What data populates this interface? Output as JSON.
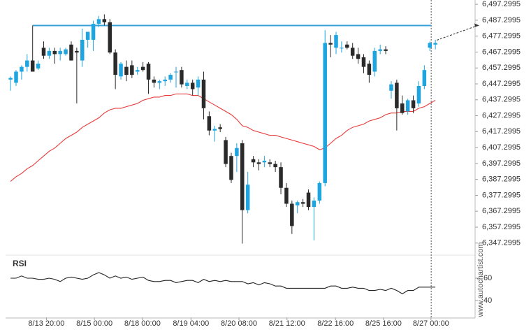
{
  "chart_data": {
    "type": "candlestick",
    "ylim": [
      6345,
      6500
    ],
    "yticks": [
      {
        "value": 6497.2995,
        "label": "6,497.2995"
      },
      {
        "value": 6487.2995,
        "label": "6,487.2995"
      },
      {
        "value": 6477.2995,
        "label": "6,477.2995"
      },
      {
        "value": 6467.2995,
        "label": "6,467.2995"
      },
      {
        "value": 6457.2995,
        "label": "6,457.2995"
      },
      {
        "value": 6447.2995,
        "label": "6,447.2995"
      },
      {
        "value": 6437.2995,
        "label": "6,437.2995"
      },
      {
        "value": 6427.2995,
        "label": "6,427.2995"
      },
      {
        "value": 6417.2995,
        "label": "6,417.2995"
      },
      {
        "value": 6407.2995,
        "label": "6,407.2995"
      },
      {
        "value": 6397.2995,
        "label": "6,397.2995"
      },
      {
        "value": 6387.2995,
        "label": "6,387.2995"
      },
      {
        "value": 6377.2995,
        "label": "6,377.2995"
      },
      {
        "value": 6367.2995,
        "label": "6,367.2995"
      },
      {
        "value": 6357.2995,
        "label": "6,357.2995"
      },
      {
        "value": 6347.2995,
        "label": "6,347.2995"
      }
    ],
    "xlim": [
      -0.9,
      84.2
    ],
    "xticks": [
      {
        "value": 6.5,
        "label": "8/13 20:00"
      },
      {
        "value": 15.2,
        "label": "8/15 00:00"
      },
      {
        "value": 23.9,
        "label": "8/18 00:00"
      },
      {
        "value": 32.7,
        "label": "8/19 04:00"
      },
      {
        "value": 41.4,
        "label": "8/20 08:00"
      },
      {
        "value": 50.1,
        "label": "8/21 12:00"
      },
      {
        "value": 58.9,
        "label": "8/22 16:00"
      },
      {
        "value": 67.6,
        "label": "8/25 16:00"
      },
      {
        "value": 76.2,
        "label": "8/27 00:00"
      }
    ],
    "up_color": "#1ea5e0",
    "down_color": "#2a2a2a",
    "candles": {
      "open": [
        6450,
        6448,
        6455,
        6458,
        6462,
        6457,
        6470,
        6465,
        6468,
        6466,
        6466,
        6472,
        6468,
        6462,
        6475,
        6475,
        6485,
        6488,
        6486,
        6467,
        6452,
        6458,
        6459,
        6455,
        6458,
        6460,
        6450,
        6448,
        6449,
        6450,
        6455,
        6456,
        6446,
        6448,
        6445,
        6450,
        6427,
        6418,
        6420,
        6412,
        6402,
        6402,
        6410,
        6368,
        6400,
        6398,
        6398,
        6398,
        6397,
        6395,
        6382,
        6372,
        6371,
        6373,
        6379,
        6370,
        6374,
        6385,
        6473,
        6470,
        6470,
        6472,
        6470,
        6466,
        6464,
        6460,
        6455,
        6468,
        6469,
        6443,
        6448,
        6435,
        6430,
        6437,
        6435,
        6446,
        6470,
        6472
      ],
      "high": [
        6452,
        6456,
        6459,
        6466,
        6484,
        6462,
        6474,
        6470,
        6470,
        6470,
        6470,
        6474,
        6470,
        6482,
        6480,
        6487,
        6490,
        6491,
        6488,
        6469,
        6461,
        6462,
        6462,
        6458,
        6461,
        6461,
        6452,
        6450,
        6452,
        6454,
        6458,
        6458,
        6450,
        6450,
        6452,
        6455,
        6430,
        6421,
        6422,
        6414,
        6404,
        6410,
        6412,
        6392,
        6402,
        6400,
        6402,
        6400,
        6399,
        6398,
        6385,
        6374,
        6374,
        6375,
        6381,
        6376,
        6386,
        6481,
        6478,
        6480,
        6474,
        6474,
        6473,
        6470,
        6466,
        6462,
        6470,
        6472,
        6471,
        6449,
        6450,
        6440,
        6438,
        6440,
        6449,
        6459,
        6474,
        6475
      ],
      "low": [
        6443,
        6446,
        6450,
        6455,
        6455,
        6456,
        6463,
        6463,
        6460,
        6462,
        6465,
        6462,
        6435,
        6458,
        6470,
        6468,
        6483,
        6484,
        6466,
        6444,
        6450,
        6449,
        6451,
        6453,
        6455,
        6441,
        6445,
        6444,
        6446,
        6448,
        6445,
        6445,
        6444,
        6440,
        6440,
        6425,
        6415,
        6411,
        6417,
        6395,
        6385,
        6392,
        6347,
        6366,
        6395,
        6393,
        6395,
        6395,
        6392,
        6378,
        6370,
        6353,
        6366,
        6370,
        6368,
        6349,
        6372,
        6383,
        6464,
        6466,
        6467,
        6469,
        6463,
        6460,
        6454,
        6448,
        6452,
        6466,
        6466,
        6438,
        6418,
        6428,
        6428,
        6429,
        6433,
        6444,
        6468,
        6469
      ],
      "close": [
        6451,
        6455,
        6458,
        6462,
        6455,
        6460,
        6465,
        6468,
        6466,
        6468,
        6469,
        6462,
        6467,
        6475,
        6480,
        6485,
        6488,
        6486,
        6467,
        6453,
        6460,
        6453,
        6453,
        6456,
        6456,
        6450,
        6448,
        6449,
        6450,
        6453,
        6455,
        6447,
        6448,
        6444,
        6450,
        6432,
        6418,
        6419,
        6419,
        6397,
        6387,
        6407,
        6368,
        6384,
        6398,
        6397,
        6399,
        6397,
        6395,
        6382,
        6372,
        6358,
        6373,
        6372,
        6370,
        6374,
        6385,
        6473,
        6472,
        6478,
        6470,
        6470,
        6465,
        6463,
        6458,
        6453,
        6468,
        6469,
        6468,
        6447,
        6432,
        6429,
        6437,
        6432,
        6446,
        6456,
        6473,
        6473
      ]
    },
    "series": [
      {
        "name": "MA",
        "color": "#e83a3a",
        "values": [
          6386,
          6389,
          6391,
          6394,
          6396,
          6399,
          6402,
          6405,
          6407,
          6410,
          6413,
          6415,
          6417,
          6420,
          6422,
          6424,
          6426,
          6429,
          6431,
          6432,
          6432,
          6433,
          6434,
          6435,
          6437,
          6438,
          6439,
          6439,
          6440,
          6440,
          6441,
          6441,
          6441,
          6440,
          6440,
          6438,
          6436,
          6434,
          6432,
          6430,
          6428,
          6425,
          6421,
          6420,
          6418,
          6417,
          6416,
          6415,
          6415,
          6414,
          6413,
          6412,
          6411,
          6410,
          6409,
          6408,
          6406,
          6407,
          6410,
          6413,
          6415,
          6418,
          6420,
          6421,
          6422,
          6424,
          6425,
          6426,
          6428,
          6429,
          6429,
          6430,
          6430,
          6430,
          6432,
          6433,
          6435,
          6437
        ]
      }
    ],
    "level": 6484,
    "level_color": "#3aa0d8",
    "rsi": {
      "title": "RSI",
      "ylim": [
        25,
        80
      ],
      "yticks": [
        60,
        40
      ],
      "color": "#222222",
      "values": [
        60,
        60,
        62,
        60,
        60,
        59,
        59,
        60,
        59,
        57,
        60,
        61,
        60,
        59,
        60,
        63,
        65,
        63,
        60,
        62,
        60,
        61,
        59,
        60,
        61,
        58,
        57,
        57,
        58,
        58,
        56,
        57,
        58,
        58,
        56,
        59,
        57,
        58,
        57,
        58,
        57,
        57,
        57,
        55,
        56,
        54,
        56,
        55,
        53,
        53,
        51,
        51,
        51,
        51,
        51,
        51,
        51,
        51,
        53,
        53,
        51,
        51,
        52,
        51,
        51,
        49,
        49,
        50,
        49,
        51,
        49,
        46,
        49,
        49,
        52,
        52,
        52,
        52
      ]
    },
    "watermark": "www.autochartist.com"
  }
}
